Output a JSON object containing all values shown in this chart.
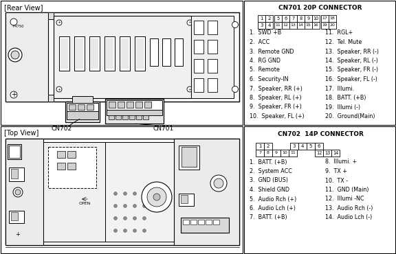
{
  "bg_color": "#ffffff",
  "cn701_title": "CN701 20P CONNECTOR",
  "cn701_items_left": [
    "1.  SWD +B",
    "2.  ACC",
    "3.  Remote GND",
    "4.  RG GND",
    "5.  Remote",
    "6.  Security-IN",
    "7.  Speaker, RR (+)",
    "8.  Speaker, RL (+)",
    "9.  Speaker, FR (+)",
    "10.  Speaker, FL (+)"
  ],
  "cn701_items_right": [
    "11.  RGL+",
    "12.  Tel. Mute",
    "13.  Speaker, RR (-)",
    "14.  Speaker, RL (-)",
    "15.  Speaker, FR (-)",
    "16.  Speaker, FL (-)",
    "17.  Illumi.",
    "18.  BATT. (+B)",
    "19.  Illumi (-)",
    "20.  Ground(Main)"
  ],
  "cn702_title": "CN702  14P CONNECTOR",
  "cn702_items_left": [
    "1.  BATT. (+B)",
    "2.  System ACC",
    "3.  GND (BUS)",
    "4.  Shield GND",
    "5.  Audio Rch (+)",
    "6.  Audio Lch (+)",
    "7.  BATT. (+B)"
  ],
  "cn702_items_right": [
    "8.  Illumi. +",
    "9.  TX +",
    "10.  TX -",
    "11.  GND (Main)",
    "12.  Illumi -NC",
    "13.  Audio Rch (-)",
    "14.  Audio Lch (-)"
  ],
  "rear_view_label": "[Rear View]",
  "top_view_label": "[Top View]",
  "cn701_label": "CN701",
  "cn702_label": "CN702"
}
